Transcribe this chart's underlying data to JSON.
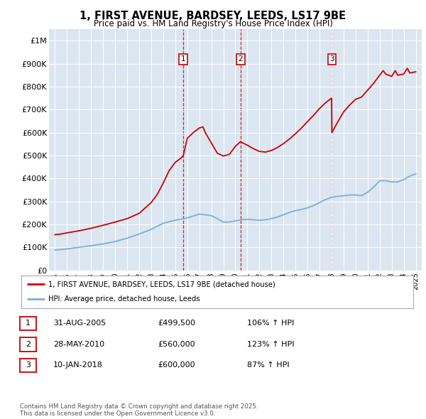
{
  "title": "1, FIRST AVENUE, BARDSEY, LEEDS, LS17 9BE",
  "subtitle": "Price paid vs. HM Land Registry's House Price Index (HPI)",
  "background_color": "#dce6f1",
  "plot_bg_color": "#dce6f1",
  "legend_label_red": "1, FIRST AVENUE, BARDSEY, LEEDS, LS17 9BE (detached house)",
  "legend_label_blue": "HPI: Average price, detached house, Leeds",
  "footer": "Contains HM Land Registry data © Crown copyright and database right 2025.\nThis data is licensed under the Open Government Licence v3.0.",
  "transactions": [
    {
      "num": 1,
      "date": "31-AUG-2005",
      "price": 499500,
      "hpi_pct": "106% ↑ HPI",
      "x": 2005.67
    },
    {
      "num": 2,
      "date": "28-MAY-2010",
      "price": 560000,
      "hpi_pct": "123% ↑ HPI",
      "x": 2010.42
    },
    {
      "num": 3,
      "date": "10-JAN-2018",
      "price": 600000,
      "hpi_pct": "87% ↑ HPI",
      "x": 2018.03
    }
  ],
  "ylim": [
    0,
    1050000
  ],
  "xlim": [
    1994.5,
    2025.5
  ],
  "yticks": [
    0,
    100000,
    200000,
    300000,
    400000,
    500000,
    600000,
    700000,
    800000,
    900000,
    1000000
  ],
  "ytick_labels": [
    "£0",
    "£100K",
    "£200K",
    "£300K",
    "£400K",
    "£500K",
    "£600K",
    "£700K",
    "£800K",
    "£900K",
    "£1M"
  ],
  "red_line_color": "#cc0000",
  "blue_line_color": "#7bafd4",
  "hpi_line": {
    "x": [
      1995,
      1996,
      1997,
      1998,
      1999,
      2000,
      2001,
      2002,
      2003,
      2004,
      2005,
      2006,
      2007,
      2008,
      2008.5,
      2009,
      2009.5,
      2010,
      2010.5,
      2011,
      2011.5,
      2012,
      2012.5,
      2013,
      2013.5,
      2014,
      2014.5,
      2015,
      2015.5,
      2016,
      2016.5,
      2017,
      2017.5,
      2018,
      2018.5,
      2019,
      2019.5,
      2020,
      2020.5,
      2021,
      2021.5,
      2022,
      2022.5,
      2023,
      2023.5,
      2024,
      2024.5,
      2025
    ],
    "y": [
      88000,
      93000,
      100000,
      107000,
      115000,
      125000,
      140000,
      158000,
      178000,
      205000,
      218000,
      228000,
      245000,
      238000,
      225000,
      210000,
      210000,
      215000,
      220000,
      222000,
      220000,
      218000,
      220000,
      225000,
      232000,
      242000,
      252000,
      260000,
      265000,
      272000,
      282000,
      295000,
      308000,
      318000,
      322000,
      325000,
      328000,
      328000,
      325000,
      340000,
      362000,
      390000,
      390000,
      385000,
      385000,
      395000,
      410000,
      420000
    ]
  },
  "price_line": {
    "x": [
      1995,
      1995.5,
      1996,
      1997,
      1998,
      1999,
      2000,
      2001,
      2002,
      2003,
      2003.5,
      2004,
      2004.5,
      2005,
      2005.5,
      2005.67,
      2006,
      2006.5,
      2007,
      2007.3,
      2007.5,
      2008,
      2008.5,
      2009,
      2009.5,
      2010,
      2010.42,
      2011,
      2011.5,
      2012,
      2012.5,
      2013,
      2013.5,
      2014,
      2014.5,
      2015,
      2015.5,
      2016,
      2016.5,
      2017,
      2017.5,
      2018,
      2018.03,
      2018.5,
      2019,
      2019.5,
      2020,
      2020.5,
      2021,
      2021.5,
      2022,
      2022.3,
      2022.5,
      2023,
      2023.3,
      2023.5,
      2024,
      2024.3,
      2024.5,
      2025
    ],
    "y": [
      155000,
      158000,
      163000,
      172000,
      183000,
      196000,
      210000,
      225000,
      248000,
      295000,
      330000,
      380000,
      435000,
      470000,
      490000,
      499500,
      575000,
      600000,
      620000,
      625000,
      600000,
      555000,
      510000,
      498000,
      505000,
      540000,
      560000,
      545000,
      530000,
      518000,
      515000,
      522000,
      535000,
      552000,
      572000,
      595000,
      620000,
      648000,
      675000,
      705000,
      730000,
      750000,
      600000,
      645000,
      690000,
      720000,
      745000,
      755000,
      785000,
      815000,
      850000,
      870000,
      855000,
      845000,
      870000,
      850000,
      855000,
      880000,
      860000,
      865000
    ]
  }
}
